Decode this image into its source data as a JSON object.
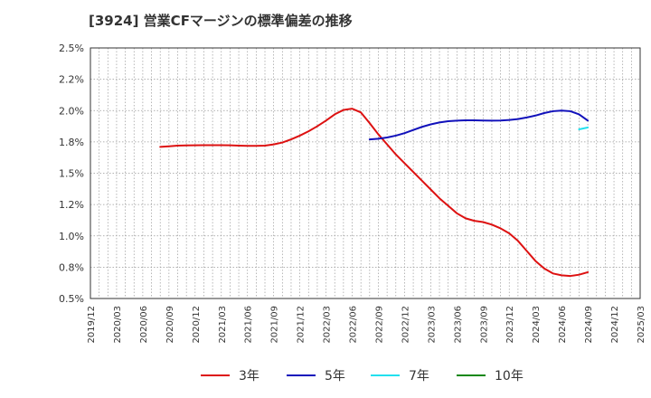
{
  "chart_data": {
    "type": "line",
    "title": "[3924]  営業CFマージンの標準偏差の推移",
    "xlabel": "",
    "ylabel": "",
    "ylim": [
      0.5,
      2.5
    ],
    "grid": true,
    "legend_position": "bottom",
    "y_ticks": [
      "2.5%",
      "2.2%",
      "2.0%",
      "1.8%",
      "1.5%",
      "1.2%",
      "1.0%",
      "0.8%",
      "0.5%"
    ],
    "x_ticks": [
      "2019/12",
      "2020/03",
      "2020/06",
      "2020/09",
      "2020/12",
      "2021/03",
      "2021/06",
      "2021/09",
      "2021/12",
      "2022/03",
      "2022/06",
      "2022/09",
      "2022/12",
      "2023/03",
      "2023/06",
      "2023/09",
      "2023/12",
      "2024/03",
      "2024/06",
      "2024/09",
      "2024/12",
      "2025/03"
    ],
    "series": [
      {
        "name": "3年",
        "color": "#dd1111",
        "points": [
          [
            "2020/08",
            1.71
          ],
          [
            "2020/09",
            1.715
          ],
          [
            "2020/10",
            1.72
          ],
          [
            "2020/11",
            1.722
          ],
          [
            "2020/12",
            1.723
          ],
          [
            "2021/01",
            1.724
          ],
          [
            "2021/02",
            1.724
          ],
          [
            "2021/03",
            1.724
          ],
          [
            "2021/04",
            1.723
          ],
          [
            "2021/05",
            1.72
          ],
          [
            "2021/06",
            1.718
          ],
          [
            "2021/07",
            1.718
          ],
          [
            "2021/08",
            1.72
          ],
          [
            "2021/09",
            1.73
          ],
          [
            "2021/10",
            1.745
          ],
          [
            "2021/11",
            1.77
          ],
          [
            "2021/12",
            1.8
          ],
          [
            "2022/01",
            1.835
          ],
          [
            "2022/02",
            1.875
          ],
          [
            "2022/03",
            1.92
          ],
          [
            "2022/04",
            1.97
          ],
          [
            "2022/05",
            2.005
          ],
          [
            "2022/06",
            2.015
          ],
          [
            "2022/07",
            1.985
          ],
          [
            "2022/08",
            1.9
          ],
          [
            "2022/09",
            1.81
          ],
          [
            "2022/10",
            1.73
          ],
          [
            "2022/11",
            1.65
          ],
          [
            "2022/12",
            1.58
          ],
          [
            "2023/01",
            1.51
          ],
          [
            "2023/02",
            1.44
          ],
          [
            "2023/03",
            1.37
          ],
          [
            "2023/04",
            1.3
          ],
          [
            "2023/05",
            1.24
          ],
          [
            "2023/06",
            1.18
          ],
          [
            "2023/07",
            1.14
          ],
          [
            "2023/08",
            1.12
          ],
          [
            "2023/09",
            1.11
          ],
          [
            "2023/10",
            1.09
          ],
          [
            "2023/11",
            1.06
          ],
          [
            "2023/12",
            1.02
          ],
          [
            "2024/01",
            0.96
          ],
          [
            "2024/02",
            0.88
          ],
          [
            "2024/03",
            0.8
          ],
          [
            "2024/04",
            0.74
          ],
          [
            "2024/05",
            0.7
          ],
          [
            "2024/06",
            0.685
          ],
          [
            "2024/07",
            0.68
          ],
          [
            "2024/08",
            0.69
          ],
          [
            "2024/09",
            0.71
          ]
        ]
      },
      {
        "name": "5年",
        "color": "#1111bb",
        "points": [
          [
            "2022/08",
            1.77
          ],
          [
            "2022/09",
            1.775
          ],
          [
            "2022/10",
            1.785
          ],
          [
            "2022/11",
            1.8
          ],
          [
            "2022/12",
            1.82
          ],
          [
            "2023/01",
            1.845
          ],
          [
            "2023/02",
            1.87
          ],
          [
            "2023/03",
            1.89
          ],
          [
            "2023/04",
            1.905
          ],
          [
            "2023/05",
            1.915
          ],
          [
            "2023/06",
            1.92
          ],
          [
            "2023/07",
            1.922
          ],
          [
            "2023/08",
            1.922
          ],
          [
            "2023/09",
            1.921
          ],
          [
            "2023/10",
            1.92
          ],
          [
            "2023/11",
            1.921
          ],
          [
            "2023/12",
            1.925
          ],
          [
            "2024/01",
            1.932
          ],
          [
            "2024/02",
            1.945
          ],
          [
            "2024/03",
            1.96
          ],
          [
            "2024/04",
            1.98
          ],
          [
            "2024/05",
            1.995
          ],
          [
            "2024/06",
            2.0
          ],
          [
            "2024/07",
            1.995
          ],
          [
            "2024/08",
            1.97
          ],
          [
            "2024/09",
            1.92
          ]
        ]
      },
      {
        "name": "7年",
        "color": "#22e0ee",
        "points": [
          [
            "2024/08",
            1.85
          ],
          [
            "2024/09",
            1.865
          ]
        ]
      },
      {
        "name": "10年",
        "color": "#118811",
        "points": []
      }
    ]
  }
}
